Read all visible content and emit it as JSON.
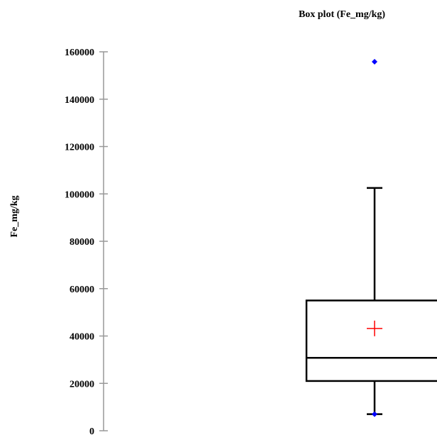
{
  "chart_data": {
    "type": "box",
    "title": "Box plot (Fe_mg/kg)",
    "xlabel": "",
    "ylabel": "Fe_mg/kg",
    "ylim": [
      0,
      160000
    ],
    "yticks": [
      0,
      20000,
      40000,
      60000,
      80000,
      100000,
      120000,
      140000,
      160000
    ],
    "grid": false,
    "series": [
      {
        "whisker_low": 7000,
        "q1": 21000,
        "median": 30800,
        "q3": 55000,
        "whisker_high": 102500,
        "mean": 43200,
        "min_point": 7000,
        "outliers": [
          155800
        ]
      }
    ],
    "colors": {
      "box": "#000000",
      "mean_marker": "#ff0000",
      "points": "#0000ff"
    }
  }
}
